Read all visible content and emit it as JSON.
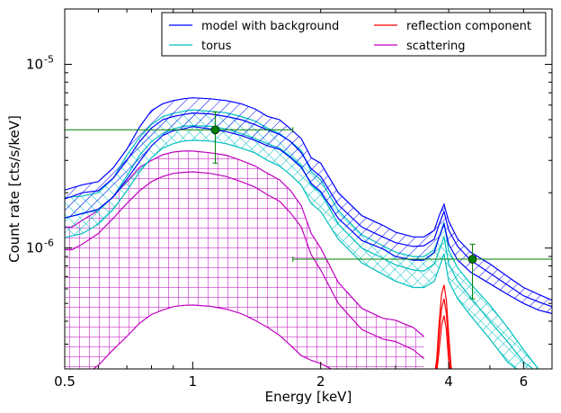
{
  "chart_data": {
    "type": "line",
    "xlabel": "Energy [keV]",
    "ylabel": "Count rate [cts/s/keV]",
    "xscale": "log",
    "yscale": "log",
    "xlim": [
      0.5,
      7.0
    ],
    "ylim": [
      2.2e-07,
      2e-05
    ],
    "xticks": [
      {
        "value": 0.5,
        "label": "0.5"
      },
      {
        "value": 1,
        "label": "1"
      },
      {
        "value": 2,
        "label": "2"
      },
      {
        "value": 4,
        "label": "4"
      },
      {
        "value": 6,
        "label": "6"
      }
    ],
    "yticks": [
      {
        "value": 1e-06,
        "base": "10",
        "exp": "-6"
      },
      {
        "value": 1e-05,
        "base": "10",
        "exp": "-5"
      }
    ],
    "grid": false,
    "legend_position": "top-right",
    "colors": {
      "model": "#0000ff",
      "torus": "#00bfbf",
      "reflection": "#ff0000",
      "scattering": "#bf00bf",
      "data": "#008000"
    },
    "legend": [
      {
        "label": "model with background",
        "color": "#0000ff"
      },
      {
        "label": "reflection component",
        "color": "#ff0000"
      },
      {
        "label": "torus",
        "color": "#00bfbf"
      },
      {
        "label": "scattering",
        "color": "#bf00bf"
      }
    ],
    "series": [
      {
        "name": "model with background",
        "color": "#0000ff",
        "hatch": "diagonal",
        "x": [
          0.5,
          0.55,
          0.6,
          0.65,
          0.7,
          0.75,
          0.8,
          0.85,
          0.9,
          0.95,
          1.0,
          1.1,
          1.2,
          1.3,
          1.4,
          1.5,
          1.6,
          1.7,
          1.8,
          1.9,
          2.0,
          2.2,
          2.5,
          2.8,
          3.0,
          3.3,
          3.5,
          3.7,
          3.8,
          3.9,
          4.0,
          4.2,
          4.5,
          5.0,
          5.5,
          6.0,
          6.5,
          7.0
        ],
        "upper": [
          2.07e-06,
          2.21e-06,
          2.3e-06,
          2.73e-06,
          3.45e-06,
          4.56e-06,
          5.6e-06,
          6.1e-06,
          6.35e-06,
          6.49e-06,
          6.57e-06,
          6.49e-06,
          6.35e-06,
          6.1e-06,
          5.72e-06,
          5.21e-06,
          5e-06,
          4.45e-06,
          3.94e-06,
          3.1e-06,
          2.9e-06,
          2e-06,
          1.5e-06,
          1.33e-06,
          1.22e-06,
          1.15e-06,
          1.15e-06,
          1.25e-06,
          1.5e-06,
          1.73e-06,
          1.4e-06,
          1.12e-06,
          9.5e-07,
          8.2e-07,
          7e-07,
          6.1e-07,
          5.6e-07,
          5.2e-07
        ],
        "mid": [
          1.85e-06,
          2e-06,
          2.05e-06,
          2.4e-06,
          3e-06,
          3.8e-06,
          4.5e-06,
          5e-06,
          5.2e-06,
          5.33e-06,
          5.43e-06,
          5.37e-06,
          5.2e-06,
          5e-06,
          4.7e-06,
          4.4e-06,
          4.15e-06,
          3.8e-06,
          3.3e-06,
          2.7e-06,
          2.45e-06,
          1.72e-06,
          1.3e-06,
          1.15e-06,
          1.07e-06,
          1.02e-06,
          1.03e-06,
          1.12e-06,
          1.35e-06,
          1.58e-06,
          1.25e-06,
          1.02e-06,
          8.6e-07,
          7.3e-07,
          6.3e-07,
          5.5e-07,
          5.1e-07,
          4.8e-07
        ],
        "lower": [
          1.46e-06,
          1.54e-06,
          1.63e-06,
          1.9e-06,
          2.37e-06,
          2.96e-06,
          3.6e-06,
          4.1e-06,
          4.35e-06,
          4.45e-06,
          4.58e-06,
          4.45e-06,
          4.3e-06,
          4.1e-06,
          3.86e-06,
          3.6e-06,
          3.45e-06,
          3.1e-06,
          2.75e-06,
          2.25e-06,
          2.03e-06,
          1.45e-06,
          1.1e-06,
          9.9e-07,
          9e-07,
          8.6e-07,
          8.6e-07,
          9.5e-07,
          1.15e-06,
          1.35e-06,
          1.05e-06,
          8.6e-07,
          7.4e-07,
          6.4e-07,
          5.6e-07,
          5e-07,
          4.6e-07,
          4.4e-07
        ]
      },
      {
        "name": "torus",
        "color": "#00bfbf",
        "hatch": "cross",
        "x": [
          0.5,
          0.55,
          0.6,
          0.65,
          0.7,
          0.75,
          0.8,
          0.85,
          0.9,
          0.95,
          1.0,
          1.1,
          1.2,
          1.3,
          1.4,
          1.5,
          1.6,
          1.7,
          1.8,
          1.9,
          2.0,
          2.2,
          2.5,
          2.8,
          3.0,
          3.3,
          3.5,
          3.7,
          3.8,
          3.9,
          4.0,
          4.2,
          4.5,
          5.0,
          5.5,
          6.0,
          6.5,
          7.0
        ],
        "upper": [
          1.88e-06,
          1.92e-06,
          2e-06,
          2.4e-06,
          3.2e-06,
          4e-06,
          4.7e-06,
          5.2e-06,
          5.4e-06,
          5.55e-06,
          5.66e-06,
          5.55e-06,
          5.45e-06,
          5.2e-06,
          4.92e-06,
          4.5e-06,
          4.2e-06,
          3.8e-06,
          3.4e-06,
          2.6e-06,
          2.35e-06,
          1.6e-06,
          1.18e-06,
          1.03e-06,
          9.5e-07,
          9e-07,
          9e-07,
          9.8e-07,
          1.15e-06,
          1.38e-06,
          9.7e-07,
          7.8e-07,
          6.4e-07,
          4.9e-07,
          3.7e-07,
          2.8e-07,
          2.2e-07,
          2e-07
        ],
        "mid": [
          1.45e-06,
          1.55e-06,
          1.6e-06,
          1.9e-06,
          2.47e-06,
          3.2e-06,
          3.8e-06,
          4.2e-06,
          4.45e-06,
          4.6e-06,
          4.64e-06,
          4.6e-06,
          4.45e-06,
          4.2e-06,
          3.95e-06,
          3.7e-06,
          3.5e-06,
          3.15e-06,
          2.8e-06,
          2.2e-06,
          2e-06,
          1.35e-06,
          1e-06,
          8.8e-07,
          8.1e-07,
          7.6e-07,
          7.5e-07,
          8.2e-07,
          9.7e-07,
          1.15e-06,
          8.2e-07,
          6.6e-07,
          5.4e-07,
          4e-07,
          3.1e-07,
          2.4e-07,
          2.1e-07,
          2e-07
        ],
        "lower": [
          1.14e-06,
          1.2e-06,
          1.35e-06,
          1.62e-06,
          2.05e-06,
          2.6e-06,
          3.1e-06,
          3.5e-06,
          3.7e-06,
          3.82e-06,
          3.86e-06,
          3.82e-06,
          3.7e-06,
          3.5e-06,
          3.3e-06,
          3e-06,
          2.8e-06,
          2.5e-06,
          2.2e-06,
          1.75e-06,
          1.58e-06,
          1.12e-06,
          8.3e-07,
          7.2e-07,
          6.6e-07,
          6.1e-07,
          6.1e-07,
          6.6e-07,
          7.8e-07,
          9.3e-07,
          6.6e-07,
          5.3e-07,
          4.3e-07,
          3.2e-07,
          2.4e-07,
          2.05e-07,
          2e-07,
          2e-07
        ]
      },
      {
        "name": "reflection component",
        "color": "#ff0000",
        "hatch": "none",
        "x": [
          3.6,
          3.7,
          3.75,
          3.8,
          3.85,
          3.9,
          3.95,
          4.0,
          4.05,
          4.1,
          4.2
        ],
        "upper": [
          2e-07,
          2e-07,
          2.5e-07,
          4e-07,
          5.6e-07,
          6.3e-07,
          5.2e-07,
          3.4e-07,
          2.3e-07,
          2e-07,
          2e-07
        ],
        "mid": [
          2e-07,
          2e-07,
          2.3e-07,
          3.4e-07,
          4.7e-07,
          5.3e-07,
          4.4e-07,
          2.9e-07,
          2.1e-07,
          2e-07,
          2e-07
        ],
        "lower": [
          2e-07,
          2e-07,
          2.1e-07,
          2.8e-07,
          3.8e-07,
          4.3e-07,
          3.6e-07,
          2.4e-07,
          2e-07,
          2e-07,
          2e-07
        ]
      },
      {
        "name": "scattering",
        "color": "#bf00bf",
        "hatch": "grid",
        "x": [
          0.5,
          0.52,
          0.55,
          0.6,
          0.65,
          0.7,
          0.75,
          0.8,
          0.85,
          0.9,
          0.95,
          1.0,
          1.1,
          1.2,
          1.3,
          1.4,
          1.5,
          1.6,
          1.7,
          1.8,
          1.9,
          2.0,
          2.2,
          2.5,
          2.8,
          3.0,
          3.3,
          3.5
        ],
        "upper": [
          1.3e-06,
          1.3e-06,
          1.42e-06,
          1.6e-06,
          1.9e-06,
          2.3e-06,
          2.75e-06,
          3e-06,
          3.22e-06,
          3.33e-06,
          3.37e-06,
          3.37e-06,
          3.3e-06,
          3.2e-06,
          3e-06,
          2.8e-06,
          2.55e-06,
          2.35e-06,
          2.05e-06,
          1.7e-06,
          1.2e-06,
          1e-06,
          6.5e-07,
          4.7e-07,
          4.15e-07,
          4.05e-07,
          3.7e-07,
          3.3e-07
        ],
        "mid": [
          9.8e-07,
          9.8e-07,
          1.05e-06,
          1.2e-06,
          1.45e-06,
          1.75e-06,
          2.05e-06,
          2.3e-06,
          2.45e-06,
          2.55e-06,
          2.58e-06,
          2.6e-06,
          2.55e-06,
          2.45e-06,
          2.3e-06,
          2.15e-06,
          1.95e-06,
          1.8e-06,
          1.55e-06,
          1.3e-06,
          9.2e-07,
          7.6e-07,
          5e-07,
          3.6e-07,
          3.2e-07,
          3.1e-07,
          2.8e-07,
          2.5e-07
        ],
        "lower": [
          2e-07,
          2e-07,
          2e-07,
          2.3e-07,
          2.8e-07,
          3.3e-07,
          3.9e-07,
          4.35e-07,
          4.6e-07,
          4.8e-07,
          4.88e-07,
          4.9e-07,
          4.82e-07,
          4.65e-07,
          4.4e-07,
          4.05e-07,
          3.7e-07,
          3.35e-07,
          2.95e-07,
          2.6e-07,
          2.45e-07,
          2.35e-07,
          2.1e-07,
          2e-07,
          2e-07,
          2e-07,
          2e-07,
          2e-07
        ]
      }
    ],
    "data_points": [
      {
        "x": 1.13,
        "y": 4.4e-06,
        "xerr": [
          0.5,
          1.72
        ],
        "yerr": [
          2.9e-06,
          5.5e-06
        ],
        "color": "#008000"
      },
      {
        "x": 4.55,
        "y": 8.7e-07,
        "xerr": [
          1.72,
          7.0
        ],
        "yerr": [
          5.3e-07,
          1.05e-06
        ],
        "color": "#008000"
      }
    ]
  }
}
